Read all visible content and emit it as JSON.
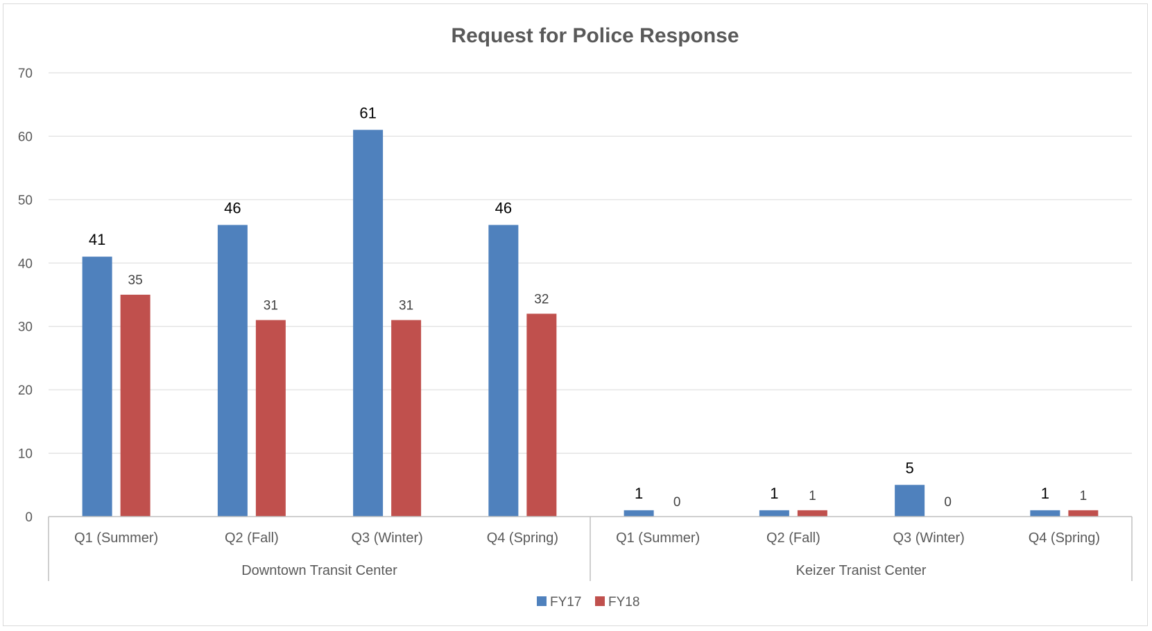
{
  "chart_data": {
    "type": "bar",
    "title": "Request for Police Response",
    "xlabel": "",
    "ylabel": "",
    "ylim": [
      0,
      70
    ],
    "yticks": [
      0,
      10,
      20,
      30,
      40,
      50,
      60,
      70
    ],
    "grid": true,
    "legend_position": "bottom",
    "groups": [
      {
        "label": "Downtown Transit Center",
        "categories": [
          "Q1 (Summer)",
          "Q2 (Fall)",
          "Q3 (Winter)",
          "Q4 (Spring)"
        ]
      },
      {
        "label": "Keizer Tranist Center",
        "categories": [
          "Q1 (Summer)",
          "Q2 (Fall)",
          "Q3 (Winter)",
          "Q4 (Spring)"
        ]
      }
    ],
    "categories": [
      "Q1 (Summer)",
      "Q2 (Fall)",
      "Q3 (Winter)",
      "Q4 (Spring)",
      "Q1 (Summer)",
      "Q2 (Fall)",
      "Q3 (Winter)",
      "Q4 (Spring)"
    ],
    "series": [
      {
        "name": "FY17",
        "color": "#4f81bd",
        "values": [
          41,
          46,
          61,
          46,
          1,
          1,
          5,
          1
        ]
      },
      {
        "name": "FY18",
        "color": "#c0504d",
        "values": [
          35,
          31,
          31,
          32,
          0,
          1,
          0,
          1
        ]
      }
    ]
  }
}
